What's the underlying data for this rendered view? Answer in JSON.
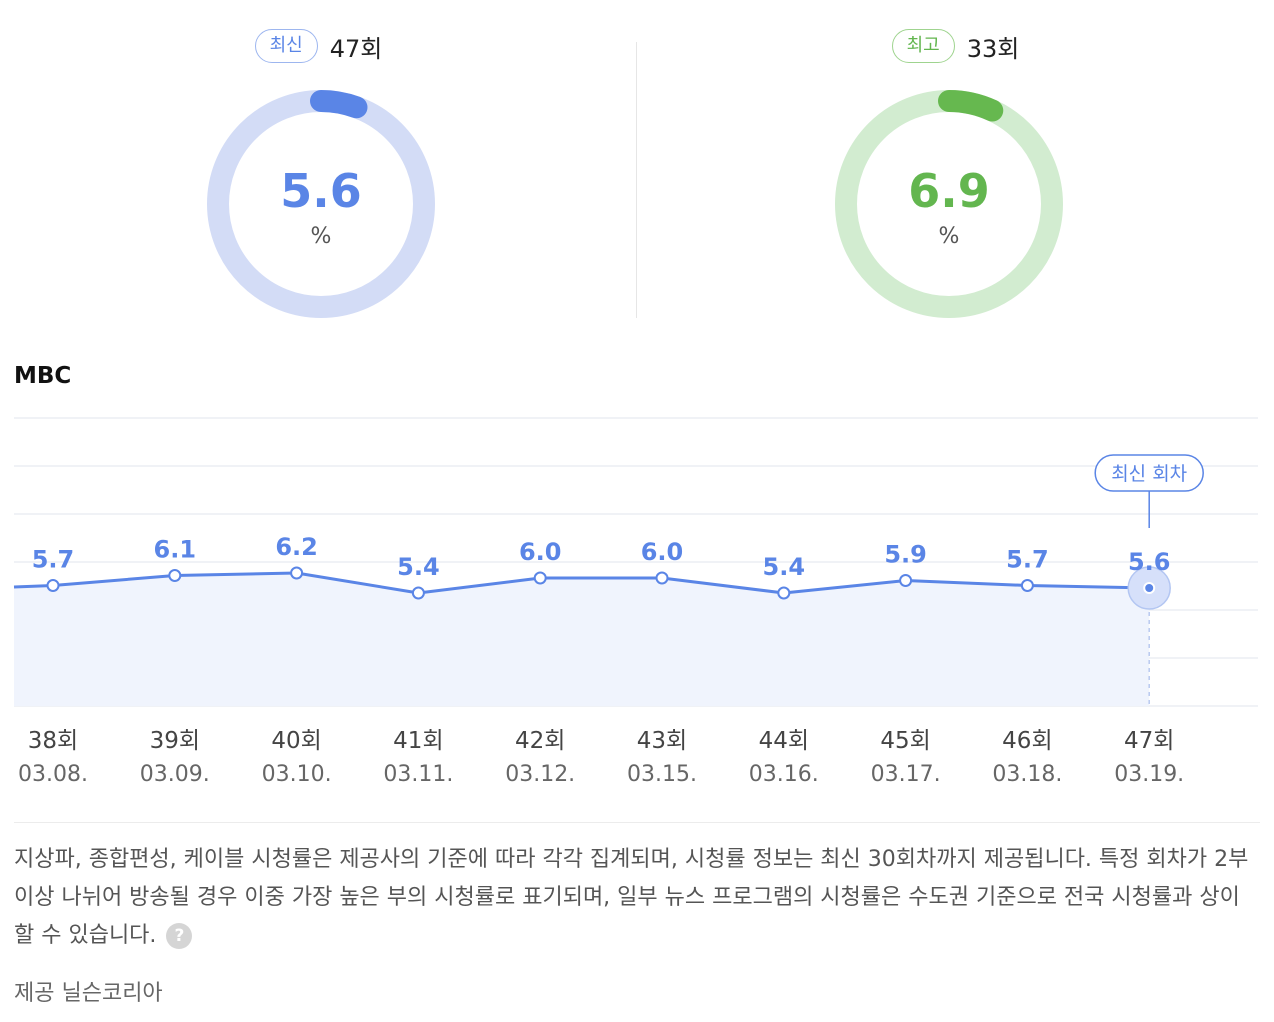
{
  "summary": {
    "latest": {
      "badge": "최신",
      "episode": "47회",
      "value": "5.6",
      "unit": "%",
      "fraction": 0.056
    },
    "best": {
      "badge": "최고",
      "episode": "33회",
      "value": "6.9",
      "unit": "%",
      "fraction": 0.069
    }
  },
  "channel": "MBC",
  "colors": {
    "blue": "#5a85e6",
    "blue_light": "#d3dcf6",
    "blue_fill": "#f0f4fd",
    "green": "#66b84f",
    "green_light": "#d2ecd0",
    "grid": "#ebeef3",
    "axis_text": "#444444"
  },
  "chart_data": {
    "type": "line",
    "categories": [
      "38회",
      "39회",
      "40회",
      "41회",
      "42회",
      "43회",
      "44회",
      "45회",
      "46회",
      "47회"
    ],
    "dates": [
      "03.08.",
      "03.09.",
      "03.10.",
      "03.11.",
      "03.12.",
      "03.15.",
      "03.16.",
      "03.17.",
      "03.18.",
      "03.19."
    ],
    "values": [
      5.7,
      6.1,
      6.2,
      5.4,
      6.0,
      6.0,
      5.4,
      5.9,
      5.7,
      5.6
    ],
    "labels": [
      "5.7",
      "6.1",
      "6.2",
      "5.4",
      "6.0",
      "6.0",
      "5.4",
      "5.9",
      "5.7",
      "5.6"
    ],
    "highlight_index": 9,
    "highlight_label": "최신 회차",
    "grid": true,
    "area_fill": true
  },
  "notes": {
    "text": "지상파, 종합편성, 케이블 시청률은 제공사의 기준에 따라 각각 집계되며, 시청률 정보는 최신 30회차까지 제공됩니다. 특정 회차가 2부이상 나뉘어 방송될 경우 이중 가장 높은 부의 시청률로 표기되며, 일부 뉴스 프로그램의 시청률은 수도권 기준으로 전국 시청률과 상이할 수 있습니다.",
    "help_icon": "?",
    "provider": "제공 닐슨코리아"
  }
}
